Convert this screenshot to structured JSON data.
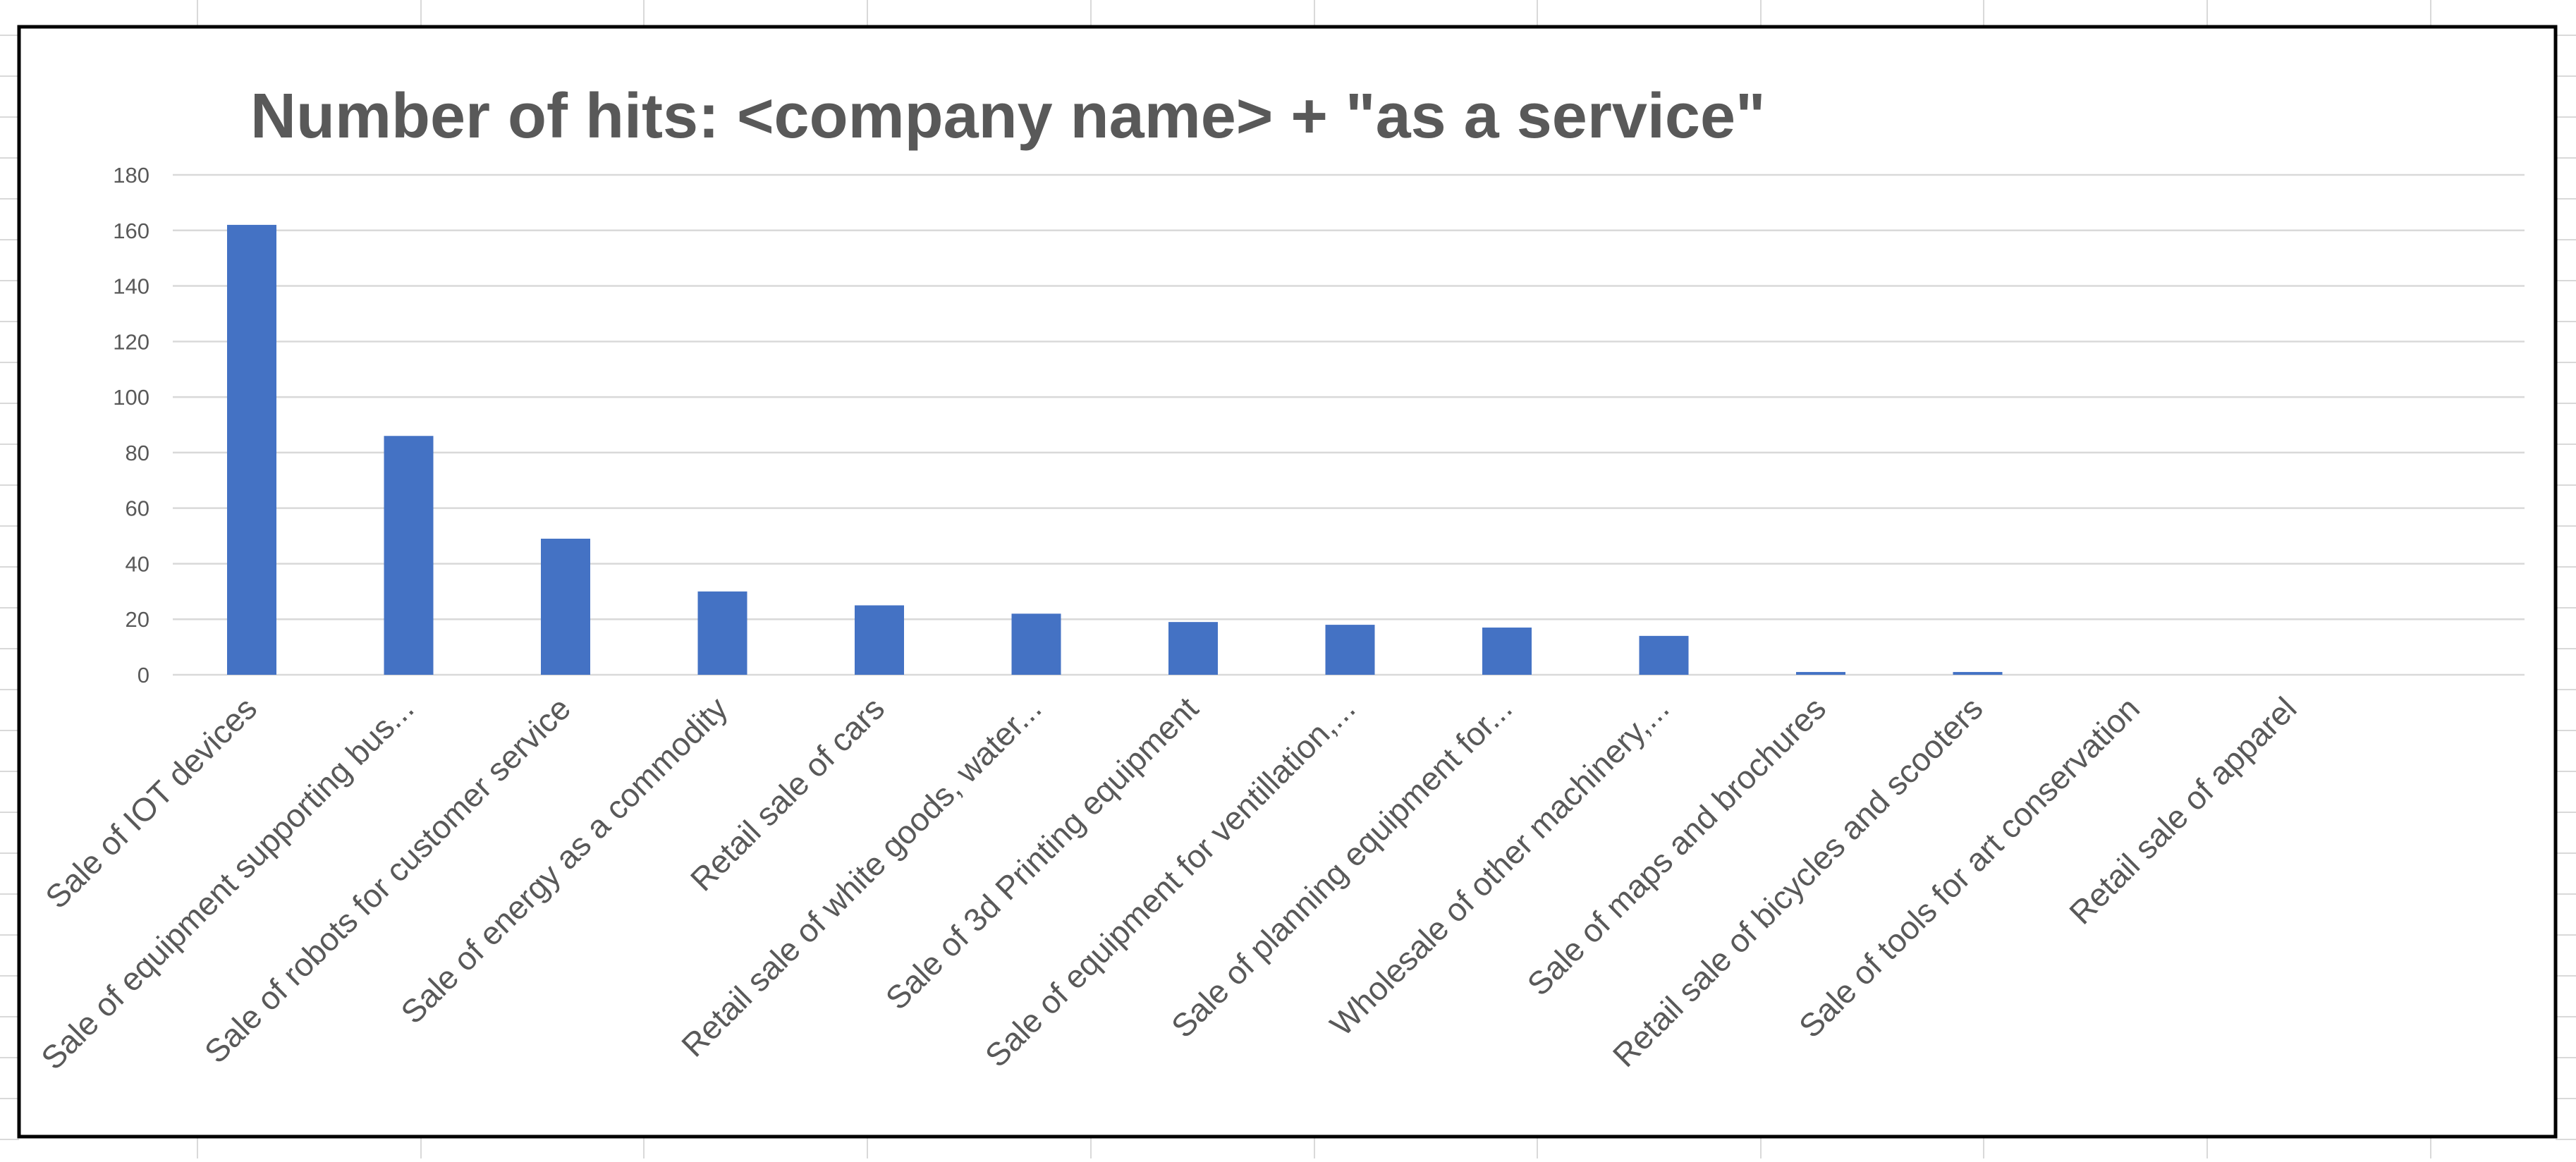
{
  "chart_data": {
    "type": "bar",
    "title": "Number of hits: <company name> + \"as a service\"",
    "xlabel": "",
    "ylabel": "",
    "ylim": [
      0,
      180
    ],
    "yticks": [
      0,
      20,
      40,
      60,
      80,
      100,
      120,
      140,
      160,
      180
    ],
    "grid": true,
    "legend": "none",
    "bar_color": "#4472c4",
    "categories": [
      "Sale of IOT devices",
      "Sale of equipment supporting bus...",
      "Sale of robots for customer service",
      "Sale of energy as a commodity",
      "Retail sale of cars",
      "Retail sale of white goods, water...",
      "Sale of 3d Printing equipment",
      "Sale of equipment for ventillation,...",
      "Sale of planning equipment for...",
      "Wholesale of other machinery,...",
      "Sale of maps and brochures",
      "Retail sale of bicycles and scooters",
      "Sale of tools for art conservation",
      "Retail sale of apparel"
    ],
    "values": [
      162,
      86,
      49,
      30,
      25,
      22,
      19,
      18,
      17,
      14,
      1,
      1,
      0,
      0
    ]
  }
}
